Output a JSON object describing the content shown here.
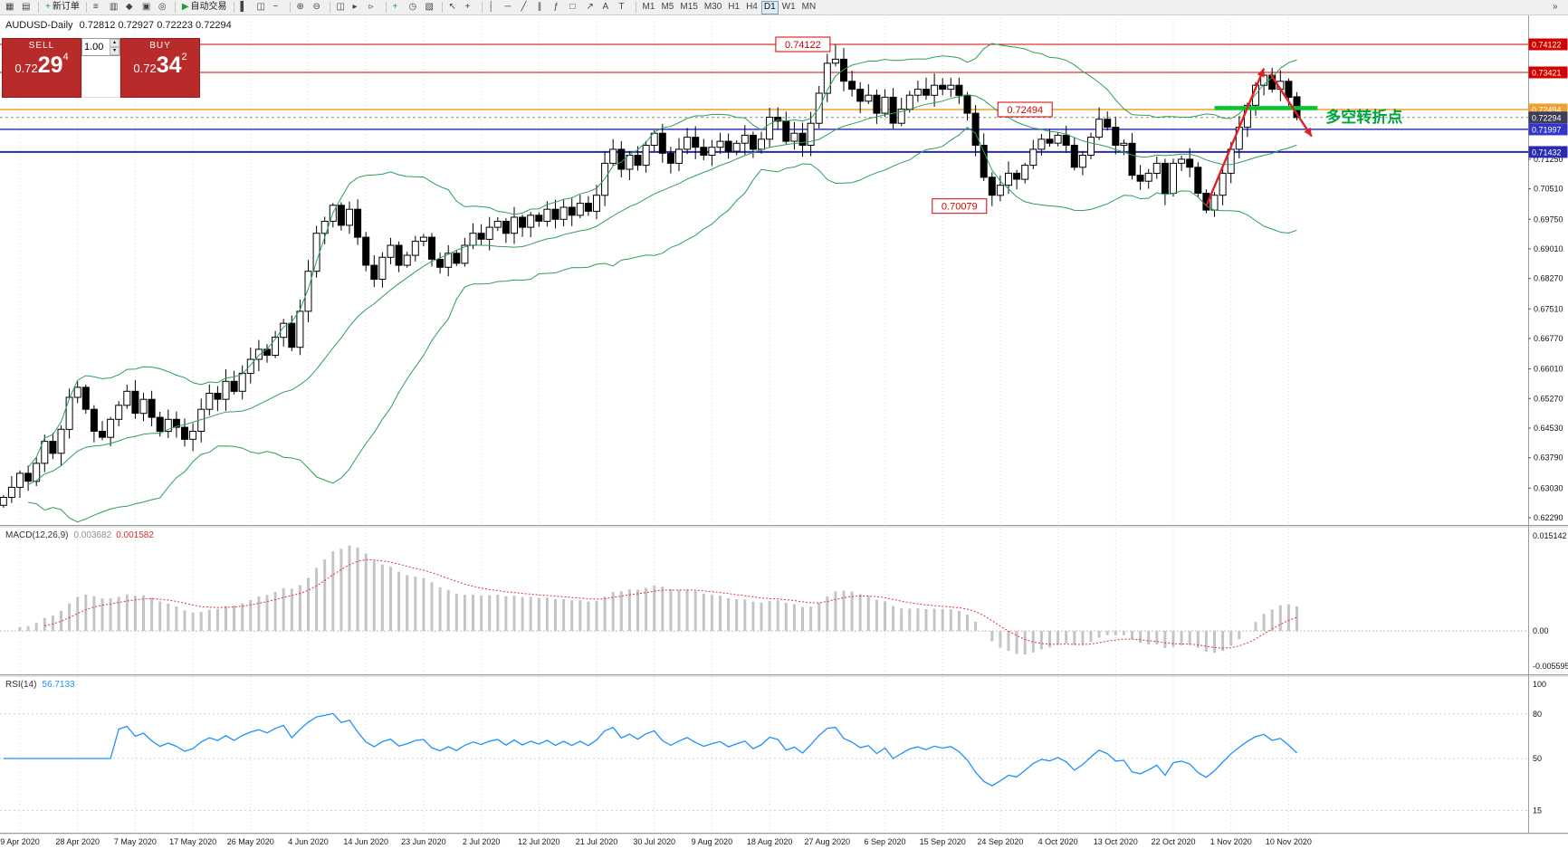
{
  "toolbar": {
    "groups": [
      {
        "items": [
          {
            "name": "new-chart",
            "glyph": "▦"
          },
          {
            "name": "chart-profiles",
            "glyph": "▤"
          }
        ]
      },
      {
        "items": [
          {
            "name": "new-order",
            "glyph": "+",
            "glyph_color": "#1f9d3a",
            "label": "新订单"
          }
        ]
      },
      {
        "items": [
          {
            "name": "market-watch",
            "glyph": "≡"
          },
          {
            "name": "data-window",
            "glyph": "▥"
          },
          {
            "name": "navigator",
            "glyph": "◆"
          },
          {
            "name": "terminal",
            "glyph": "▣"
          },
          {
            "name": "strategy-tester",
            "glyph": "◎"
          }
        ]
      },
      {
        "items": [
          {
            "name": "autotrading",
            "glyph": "▶",
            "glyph_color": "#1f9d3a",
            "label": "自动交易"
          }
        ]
      },
      {
        "items": [
          {
            "name": "bar-chart-mode",
            "glyph": "▌"
          },
          {
            "name": "candlestick-mode",
            "glyph": "◫"
          },
          {
            "name": "line-chart-mode",
            "glyph": "~"
          }
        ]
      },
      {
        "items": [
          {
            "name": "zoom-in",
            "glyph": "⊕"
          },
          {
            "name": "zoom-out",
            "glyph": "⊖"
          }
        ]
      },
      {
        "items": [
          {
            "name": "tile-windows",
            "glyph": "◫"
          },
          {
            "name": "auto-scroll",
            "glyph": "▸"
          },
          {
            "name": "chart-shift",
            "glyph": "▹"
          }
        ]
      },
      {
        "items": [
          {
            "name": "indicators",
            "glyph": "+",
            "glyph_color": "#1f9d3a"
          },
          {
            "name": "period-selector",
            "glyph": "◷"
          },
          {
            "name": "templates",
            "glyph": "▧"
          }
        ]
      },
      {
        "items": [
          {
            "name": "cursor",
            "glyph": "↖"
          },
          {
            "name": "crosshair",
            "glyph": "+"
          }
        ]
      },
      {
        "items": [
          {
            "name": "vertical-line",
            "glyph": "│"
          },
          {
            "name": "horizontal-line",
            "glyph": "─"
          },
          {
            "name": "trendline",
            "glyph": "╱"
          },
          {
            "name": "equidistant-channel",
            "glyph": "∥"
          },
          {
            "name": "fibonacci",
            "glyph": "ƒ"
          },
          {
            "name": "shapes",
            "glyph": "□"
          },
          {
            "name": "arrows",
            "glyph": "↗"
          },
          {
            "name": "text",
            "glyph": "A"
          },
          {
            "name": "text-label",
            "glyph": "T"
          }
        ]
      }
    ],
    "timeframes": {
      "items": [
        "M1",
        "M5",
        "M15",
        "M30",
        "H1",
        "H4",
        "D1",
        "W1",
        "MN"
      ],
      "active": "D1"
    },
    "overflow": {
      "name": "toolbar-overflow",
      "glyph": "»"
    }
  },
  "trade_panel": {
    "sell_label": "SELL",
    "buy_label": "BUY",
    "volume": "1.00",
    "sell": {
      "small": "0.72",
      "big": "29",
      "sup": "4"
    },
    "buy": {
      "small": "0.72",
      "big": "34",
      "sup": "2"
    },
    "spin_up": "▴",
    "spin_down": "▾",
    "button_color": "#b92b2b"
  },
  "chart": {
    "symbol_title": "AUDUSD-Daily",
    "ohlc_text": "0.72812 0.72927 0.72223 0.72294",
    "levels": [
      {
        "text": "0.74122",
        "value": 0.74122,
        "color": "#d40000",
        "width": 1
      },
      {
        "text": "0.73421",
        "value": 0.73421,
        "color": "#d40000",
        "width": 1
      },
      {
        "text": "0.72494",
        "value": 0.72494,
        "color": "#f0a030",
        "width": 1.5
      },
      {
        "text": "0.72294",
        "value": 0.72294,
        "color": "#8a8a8a",
        "width": 1,
        "dash": "3,3",
        "badge_bg": "#3d3d55"
      },
      {
        "text": "0.71997",
        "value": 0.71997,
        "color": "#3535cc",
        "width": 1.5
      },
      {
        "text": "0.71432",
        "value": 0.71432,
        "color": "#2a2ab0",
        "width": 2
      }
    ],
    "price_labels": [
      {
        "text": "0.74122",
        "price": 0.74122,
        "bar": 101,
        "side": "left"
      },
      {
        "text": "0.72494",
        "price": 0.72494,
        "bar": 124,
        "side": "center"
      },
      {
        "text": "0.70079",
        "price": 0.70079,
        "bar": 120,
        "side": "left"
      }
    ],
    "annotations": {
      "green_line": {
        "price": 0.7253,
        "from_x_bar": 147,
        "to_x_bar": 159.5,
        "color": "#00c832"
      },
      "up_arrow": {
        "from": {
          "bar": 146,
          "price": 0.7008
        },
        "to": {
          "bar": 153,
          "price": 0.7352
        },
        "color": "#e02020"
      },
      "down_arrow": {
        "from": {
          "bar": 153.8,
          "price": 0.7338
        },
        "to": {
          "bar": 158.8,
          "price": 0.7182
        },
        "color": "#e02020"
      },
      "label": {
        "text": "多空转折点",
        "color": "#00a43c",
        "bar": 160.5,
        "price": 0.7218
      }
    }
  },
  "chart_data": {
    "type": "candlestick",
    "symbol": "AUDUSD",
    "period": "Daily",
    "date_labels": [
      "9 Apr 2020",
      "28 Apr 2020",
      "7 May 2020",
      "17 May 2020",
      "26 May 2020",
      "4 Jun 2020",
      "14 Jun 2020",
      "23 Jun 2020",
      "2 Jul 2020",
      "12 Jul 2020",
      "21 Jul 2020",
      "30 Jul 2020",
      "9 Aug 2020",
      "18 Aug 2020",
      "27 Aug 2020",
      "6 Sep 2020",
      "15 Sep 2020",
      "24 Sep 2020",
      "4 Oct 2020",
      "13 Oct 2020",
      "22 Oct 2020",
      "1 Nov 2020",
      "10 Nov 2020"
    ],
    "first_label_bar_index": 2,
    "bars_per_label": 7,
    "closes": [
      0.628,
      0.6305,
      0.634,
      0.632,
      0.6365,
      0.642,
      0.639,
      0.645,
      0.653,
      0.6555,
      0.65,
      0.6445,
      0.643,
      0.6475,
      0.651,
      0.6545,
      0.649,
      0.6525,
      0.648,
      0.6445,
      0.6475,
      0.6455,
      0.6425,
      0.6445,
      0.65,
      0.654,
      0.6525,
      0.657,
      0.6545,
      0.659,
      0.6625,
      0.665,
      0.6635,
      0.668,
      0.6715,
      0.6655,
      0.6745,
      0.6845,
      0.694,
      0.697,
      0.701,
      0.696,
      0.7,
      0.693,
      0.686,
      0.6825,
      0.688,
      0.691,
      0.686,
      0.6885,
      0.692,
      0.693,
      0.6875,
      0.6855,
      0.689,
      0.6865,
      0.691,
      0.694,
      0.6925,
      0.6955,
      0.697,
      0.694,
      0.698,
      0.6955,
      0.6985,
      0.697,
      0.7,
      0.6975,
      0.7005,
      0.6985,
      0.7015,
      0.6995,
      0.7035,
      0.7115,
      0.715,
      0.71,
      0.7135,
      0.711,
      0.716,
      0.719,
      0.714,
      0.7115,
      0.715,
      0.718,
      0.7155,
      0.7135,
      0.7155,
      0.717,
      0.7145,
      0.7165,
      0.7185,
      0.715,
      0.7175,
      0.723,
      0.722,
      0.717,
      0.719,
      0.716,
      0.7215,
      0.729,
      0.7365,
      0.7375,
      0.732,
      0.73,
      0.727,
      0.7285,
      0.724,
      0.728,
      0.7215,
      0.725,
      0.7285,
      0.73,
      0.7285,
      0.731,
      0.73,
      0.731,
      0.7285,
      0.724,
      0.716,
      0.708,
      0.7035,
      0.706,
      0.709,
      0.7075,
      0.711,
      0.715,
      0.7175,
      0.7165,
      0.7185,
      0.716,
      0.7105,
      0.7135,
      0.718,
      0.7225,
      0.7205,
      0.716,
      0.7165,
      0.7085,
      0.707,
      0.709,
      0.7115,
      0.704,
      0.7115,
      0.7125,
      0.7105,
      0.704,
      0.6998,
      0.7035,
      0.709,
      0.715,
      0.7205,
      0.726,
      0.731,
      0.7335,
      0.73,
      0.732,
      0.728,
      0.72294
    ],
    "wick_overrides": {
      "9": {
        "high": 0.657
      },
      "40": {
        "high": 0.70155
      },
      "101": {
        "high": 0.74122
      },
      "120": {
        "low": 0.70079
      },
      "146": {
        "low": 0.699
      },
      "153": {
        "high": 0.73421
      }
    },
    "current_bar": {
      "open": 0.72812,
      "high": 0.72927,
      "low": 0.72223,
      "close": 0.72294
    },
    "overlays": {
      "name": "Bollinger Bands",
      "bollinger_period": 20,
      "bollinger_dev": 2,
      "color": "#2e9e57"
    },
    "indicators": {
      "macd": {
        "label": "MACD(12,26,9)",
        "fast": 12,
        "slow": 26,
        "signal": 9,
        "value_main": "0.003682",
        "value_signal": "0.001582",
        "scale": [
          "0.015142",
          "0.00",
          "-0.005595"
        ],
        "hist_color": "#c4c4c4",
        "signal_color": "#e03232"
      },
      "rsi": {
        "label": "RSI(14)",
        "period": 14,
        "value": "56.7133",
        "scale": [
          "100",
          "80",
          "50",
          "15"
        ],
        "levels": [
          80,
          50,
          15
        ],
        "color": "#1e90ff"
      }
    },
    "y_axis": {
      "ticks": [
        "0.71250",
        "0.70510",
        "0.69750",
        "0.69010",
        "0.68270",
        "0.67510",
        "0.66770",
        "0.66010",
        "0.65270",
        "0.64530",
        "0.63790",
        "0.63030",
        "0.62290"
      ]
    }
  }
}
